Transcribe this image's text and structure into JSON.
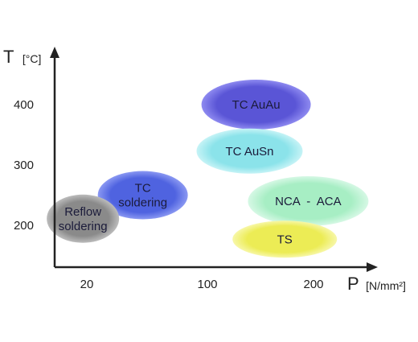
{
  "chart_data": {
    "type": "scatter",
    "title": "",
    "xlabel": {
      "symbol": "P",
      "unit": "[N/mm²]"
    },
    "ylabel": {
      "symbol": "T",
      "unit": "[°C]"
    },
    "x_ticks": [
      "20",
      "100",
      "200"
    ],
    "y_ticks": [
      "200",
      "300",
      "400"
    ],
    "grid": false,
    "regions": [
      {
        "name": "TC AuAu",
        "lines": [
          "TC AuAu"
        ],
        "x_center": 150,
        "y_center": 400,
        "color": "#5a55d6",
        "edge": "#8e8af0"
      },
      {
        "name": "TC AuSn",
        "lines": [
          "TC AuSn"
        ],
        "x_center": 145,
        "y_center": 323,
        "color": "#8be3ea",
        "edge": "#c6f3f6"
      },
      {
        "name": "NCA - ACA",
        "lines": [
          "NCA  -  ACA"
        ],
        "x_center": 190,
        "y_center": 240,
        "color": "#a7eec4",
        "edge": "#d6f8e5"
      },
      {
        "name": "TS",
        "lines": [
          "TS"
        ],
        "x_center": 172,
        "y_center": 177,
        "color": "#ecec55",
        "edge": "#f7f7a8"
      },
      {
        "name": "TC soldering",
        "lines": [
          "TC",
          "soldering"
        ],
        "x_center": 63,
        "y_center": 250,
        "color": "#4f63e0",
        "edge": "#8a98f2"
      },
      {
        "name": "Reflow soldering",
        "lines": [
          "Reflow",
          "soldering"
        ],
        "x_center": 17,
        "y_center": 211,
        "color": "#8a8a8a",
        "edge": "#bcbcbc"
      }
    ]
  }
}
